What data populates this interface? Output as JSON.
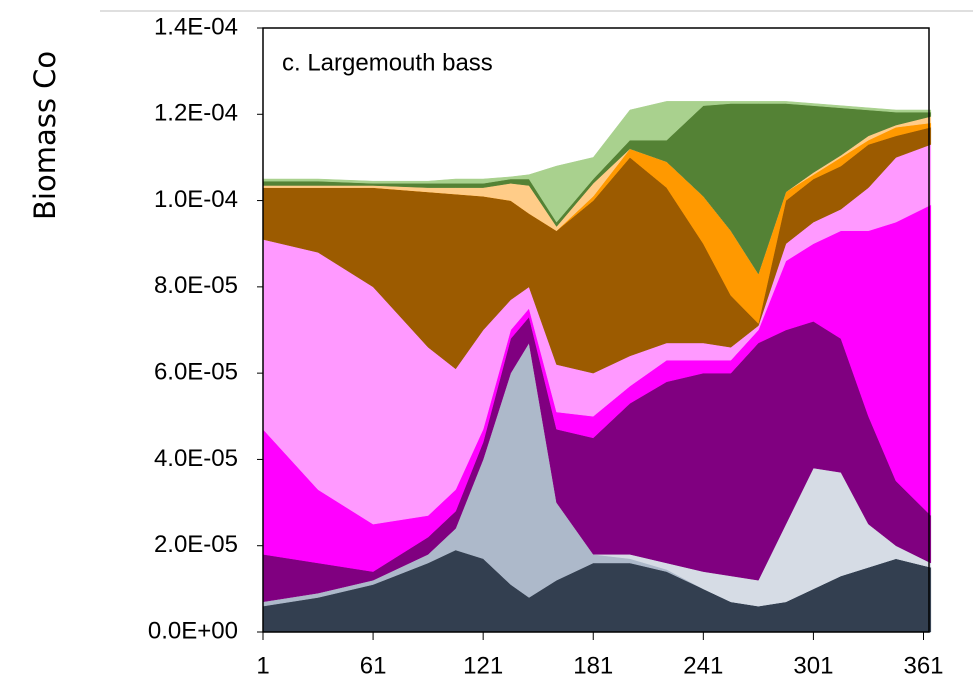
{
  "chart_data": {
    "type": "stacked_area",
    "title": "c. Largemouth bass",
    "y_label": "Biomass  Co",
    "x": [
      1,
      31,
      61,
      91,
      106,
      121,
      136,
      146,
      161,
      181,
      201,
      221,
      241,
      256,
      271,
      286,
      301,
      316,
      331,
      346,
      365
    ],
    "xlim": [
      1,
      364
    ],
    "xticks": [
      1,
      61,
      121,
      181,
      241,
      301,
      361
    ],
    "ylim": [
      0,
      0.00014
    ],
    "yticks": [
      {
        "value": 0,
        "label": "0.0E+00"
      },
      {
        "value": 2e-05,
        "label": "2.0E-05"
      },
      {
        "value": 4e-05,
        "label": "4.0E-05"
      },
      {
        "value": 6e-05,
        "label": "6.0E-05"
      },
      {
        "value": 8e-05,
        "label": "8.0E-05"
      },
      {
        "value": 0.0001,
        "label": "1.0E-04"
      },
      {
        "value": 0.00012,
        "label": "1.2E-04"
      },
      {
        "value": 0.00014,
        "label": "1.4E-04"
      }
    ],
    "series": [
      {
        "color": "#333f50",
        "values": [
          6e-06,
          8e-06,
          1.1e-05,
          1.6e-05,
          1.9e-05,
          1.7e-05,
          1.1e-05,
          8e-06,
          1.2e-05,
          1.6e-05,
          1.6e-05,
          1.4e-05,
          1e-05,
          7e-06,
          6e-06,
          7e-06,
          1e-05,
          1.3e-05,
          1.5e-05,
          1.7e-05,
          1.5e-05
        ]
      },
      {
        "color": "#adb9ca",
        "values": [
          1e-06,
          1e-06,
          1e-06,
          2e-06,
          5e-06,
          2.3e-05,
          4.9e-05,
          5.9e-05,
          1.8e-05,
          2e-06,
          1e-06,
          5e-07,
          0,
          0,
          0,
          0,
          0,
          0,
          0,
          0,
          0
        ]
      },
      {
        "color": "#d6dce5",
        "values": [
          0,
          0,
          0,
          0,
          0,
          0,
          0,
          0,
          0,
          0,
          1e-06,
          1.5e-06,
          4e-06,
          6e-06,
          6e-06,
          1.8e-05,
          2.8e-05,
          2.4e-05,
          1e-05,
          3e-06,
          1e-06
        ]
      },
      {
        "color": "#800080",
        "values": [
          1.1e-05,
          7e-06,
          2e-06,
          4e-06,
          4e-06,
          4e-06,
          8e-06,
          6e-06,
          1.7e-05,
          2.7e-05,
          3.5e-05,
          4.2e-05,
          4.6e-05,
          4.7e-05,
          5.5e-05,
          4.5e-05,
          3.4e-05,
          3.1e-05,
          2.5e-05,
          1.5e-05,
          1.1e-05
        ]
      },
      {
        "color": "#ff00ff",
        "values": [
          2.9e-05,
          1.7e-05,
          1.1e-05,
          5e-06,
          5e-06,
          3e-06,
          2e-06,
          2e-06,
          4e-06,
          5e-06,
          4e-06,
          5e-06,
          3e-06,
          3e-06,
          3e-06,
          1.6e-05,
          1.8e-05,
          2.5e-05,
          4.3e-05,
          6e-05,
          7.2e-05
        ]
      },
      {
        "color": "#ff99ff",
        "values": [
          4.4e-05,
          5.5e-05,
          5.5e-05,
          3.9e-05,
          2.8e-05,
          2.3e-05,
          7e-06,
          5e-06,
          1.1e-05,
          1e-05,
          7e-06,
          4e-06,
          4e-06,
          3e-06,
          1e-06,
          4e-06,
          5e-06,
          5e-06,
          1e-05,
          1.5e-05,
          1.4e-05
        ]
      },
      {
        "color": "#9c5b00",
        "values": [
          1.2e-05,
          1.5e-05,
          2.3e-05,
          3.6e-05,
          4.05e-05,
          3.1e-05,
          2.3e-05,
          1.7e-05,
          3.1e-05,
          4e-05,
          4.6e-05,
          3.6e-05,
          2.3e-05,
          1.2e-05,
          5e-07,
          1e-05,
          1e-05,
          1e-05,
          1e-05,
          5e-06,
          4e-06
        ]
      },
      {
        "color": "#ff9900",
        "values": [
          0,
          0,
          0,
          0,
          0,
          0,
          0,
          0,
          0,
          1e-06,
          2e-06,
          6e-06,
          1.1e-05,
          1.5e-05,
          1.15e-05,
          2e-06,
          1e-06,
          2e-06,
          1e-06,
          2e-06,
          1e-06
        ]
      },
      {
        "color": "#ffcc88",
        "values": [
          5e-07,
          5e-07,
          5e-07,
          1e-06,
          1.5e-06,
          2e-06,
          4e-06,
          6.5e-06,
          1e-06,
          3e-06,
          0,
          0,
          0,
          0,
          0,
          0,
          5e-07,
          5e-07,
          1e-06,
          5e-07,
          1.5e-06
        ]
      },
      {
        "color": "#548235",
        "values": [
          1e-06,
          1e-06,
          5e-07,
          1e-06,
          1e-06,
          1e-06,
          1e-06,
          1.5e-06,
          1e-06,
          1e-06,
          2e-06,
          5e-06,
          2.1e-05,
          2.95e-05,
          3.95e-05,
          2.05e-05,
          1.55e-05,
          1.1e-05,
          6e-06,
          3e-06,
          1e-06
        ]
      },
      {
        "color": "#a9d18e",
        "values": [
          5e-07,
          5e-07,
          5e-07,
          5e-07,
          1e-06,
          1e-06,
          5e-07,
          1e-06,
          1.3e-05,
          5e-06,
          7e-06,
          9e-06,
          1e-06,
          5e-07,
          5e-07,
          5e-07,
          5e-07,
          5e-07,
          5e-07,
          5e-07,
          5e-07
        ]
      }
    ]
  }
}
